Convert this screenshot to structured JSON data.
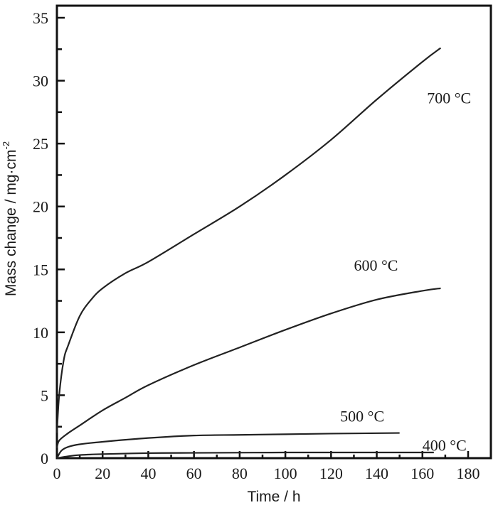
{
  "chart_data": {
    "type": "line",
    "title": "",
    "xlabel": "Time / h",
    "ylabel": "Mass change / mg·cm",
    "ylabel_superscript": "-2",
    "xlim": [
      0,
      190
    ],
    "ylim": [
      0,
      36
    ],
    "x_ticks": [
      0,
      20,
      40,
      60,
      80,
      100,
      120,
      140,
      160,
      180
    ],
    "x_minor_ticks": [
      10,
      30,
      50,
      70,
      90,
      110,
      130,
      150,
      170
    ],
    "y_ticks": [
      0,
      5,
      10,
      15,
      20,
      25,
      30,
      35
    ],
    "y_minor_ticks": [
      2.5,
      7.5,
      12.5,
      17.5,
      22.5,
      27.5,
      32.5
    ],
    "grid": false,
    "legend": "inline labels at curve ends",
    "series": [
      {
        "name": "700 °C",
        "x": [
          0,
          1,
          3,
          5,
          10,
          15,
          20,
          30,
          40,
          60,
          80,
          100,
          120,
          140,
          160,
          168
        ],
        "values": [
          2.0,
          5.0,
          7.8,
          9.0,
          11.3,
          12.6,
          13.5,
          14.7,
          15.6,
          17.8,
          20.0,
          22.5,
          25.3,
          28.5,
          31.5,
          32.6
        ]
      },
      {
        "name": "600 °C",
        "x": [
          0,
          1,
          5,
          10,
          20,
          30,
          40,
          60,
          80,
          100,
          120,
          140,
          160,
          168
        ],
        "values": [
          0.8,
          1.4,
          2.0,
          2.6,
          3.8,
          4.8,
          5.8,
          7.4,
          8.8,
          10.2,
          11.5,
          12.6,
          13.3,
          13.5
        ]
      },
      {
        "name": "500 °C",
        "x": [
          0,
          2,
          5,
          10,
          20,
          40,
          60,
          80,
          100,
          120,
          150
        ],
        "values": [
          0,
          0.6,
          0.9,
          1.1,
          1.3,
          1.6,
          1.8,
          1.85,
          1.9,
          1.95,
          2.0
        ]
      },
      {
        "name": "400 °C",
        "x": [
          0,
          5,
          10,
          20,
          40,
          60,
          100,
          140,
          165
        ],
        "values": [
          0,
          0.15,
          0.25,
          0.32,
          0.4,
          0.42,
          0.45,
          0.45,
          0.45
        ]
      }
    ],
    "annotations": [
      {
        "text": "700 °C",
        "x": 162,
        "y": 28.2
      },
      {
        "text": "600 °C",
        "x": 130,
        "y": 14.9
      },
      {
        "text": "500 °C",
        "x": 124,
        "y": 2.9
      },
      {
        "text": "400 °C",
        "x": 160,
        "y": 0.6
      }
    ]
  }
}
